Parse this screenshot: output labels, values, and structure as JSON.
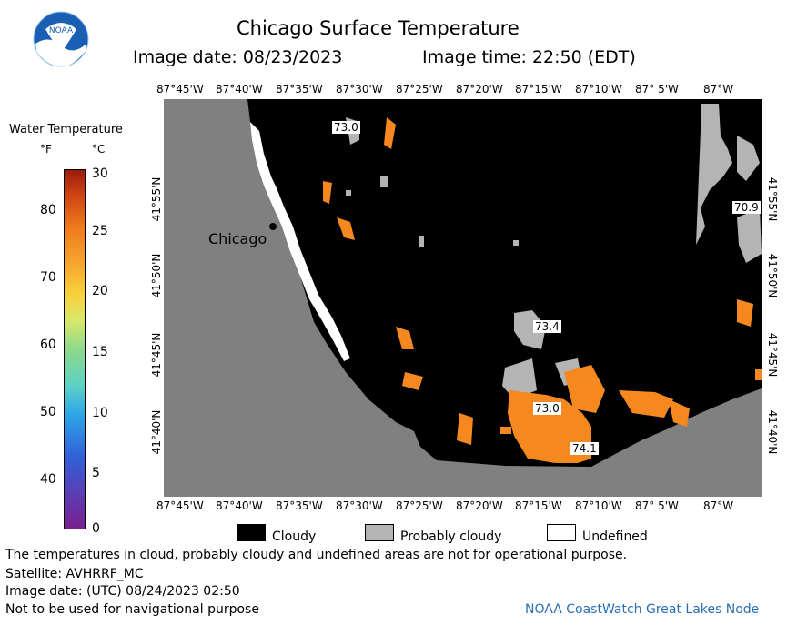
{
  "header": {
    "title": "Chicago Surface Temperature",
    "image_date": "Image date: 08/23/2023",
    "image_time": "Image time: 22:50 (EDT)"
  },
  "logo": {
    "text": "NOAA"
  },
  "colorbar": {
    "title": "Water Temperature",
    "unit_f": "°F",
    "unit_c": "°C",
    "f_ticks": [
      "80",
      "70",
      "60",
      "50",
      "40"
    ],
    "c_ticks": [
      "30",
      "25",
      "20",
      "15",
      "10",
      "5",
      "0"
    ]
  },
  "axes": {
    "lon_ticks": [
      "87°45'W",
      "87°40'W",
      "87°35'W",
      "87°30'W",
      "87°25'W",
      "87°20'W",
      "87°15'W",
      "87°10'W",
      "87° 5'W",
      "87°W"
    ],
    "lat_ticks": [
      "41°55'N",
      "41°50'N",
      "41°45'N",
      "41°40'N"
    ]
  },
  "map": {
    "city_label": "Chicago",
    "temp_labels": [
      "73.0",
      "70.9",
      "73.4",
      "73.0",
      "74.1"
    ],
    "colors": {
      "land": "#808080",
      "cloud": "#000000",
      "probably_cloudy": "#b4b4b4",
      "undefined": "#ffffff",
      "warm_water": "#f5881f"
    }
  },
  "legend": {
    "items": [
      {
        "label": "Cloudy",
        "color": "#000000"
      },
      {
        "label": "Probably cloudy",
        "color": "#b4b4b4"
      },
      {
        "label": "Undefined",
        "color": "#ffffff"
      }
    ]
  },
  "footer": {
    "note": "The temperatures in cloud, probably cloudy and undefined areas are not for operational purpose.",
    "satellite": "Satellite: AVHRRF_MC",
    "utc_date": "Image date: (UTC) 08/24/2023  02:50",
    "nav_warning": "Not to be used for navigational purpose",
    "credit": "NOAA CoastWatch Great Lakes Node"
  }
}
